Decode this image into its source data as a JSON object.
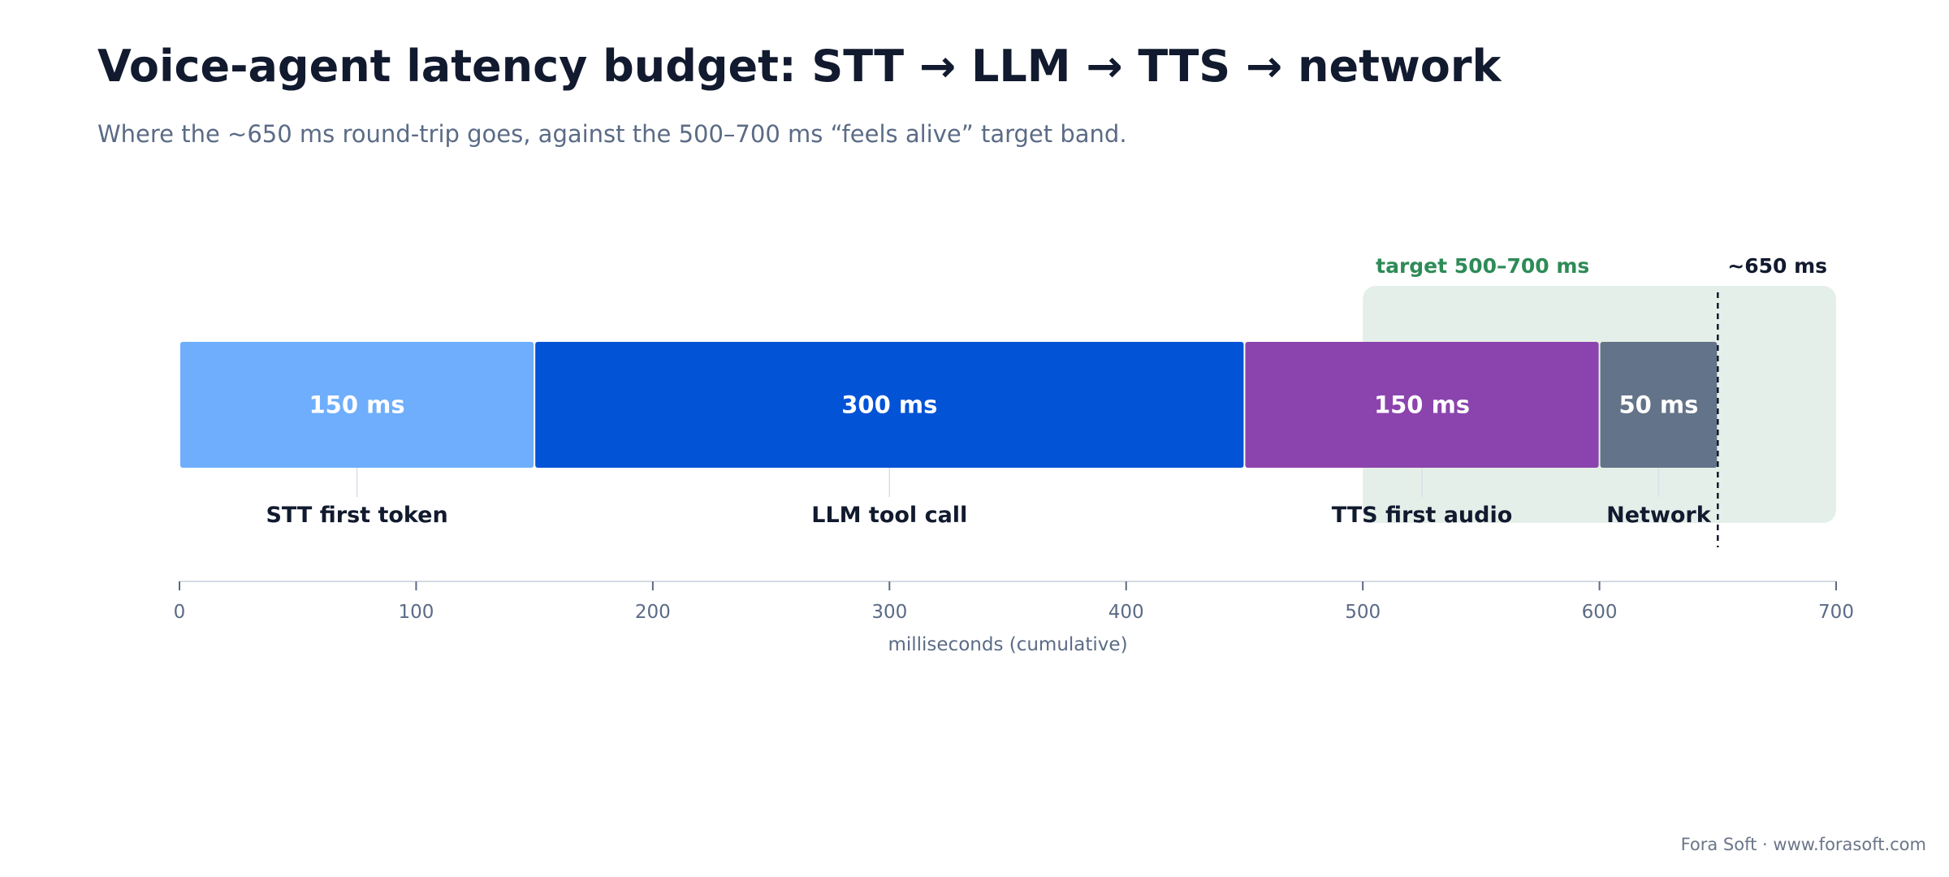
{
  "title": "Voice-agent latency budget: STT → LLM → TTS → network",
  "subtitle": "Where the ~650 ms round-trip goes, against the 500–700 ms “feels alive” target band.",
  "footer": "Fora Soft · www.forasoft.com",
  "chart_data": {
    "type": "bar",
    "orientation": "horizontal-stacked",
    "categories": [
      "STT first token",
      "LLM tool call",
      "TTS first audio",
      "Network"
    ],
    "values": [
      150,
      300,
      150,
      50
    ],
    "value_labels": [
      "150 ms",
      "300 ms",
      "150 ms",
      "50 ms"
    ],
    "colors": [
      "#6eaefc",
      "#0353d6",
      "#8b44ad",
      "#637389"
    ],
    "xlabel": "milliseconds (cumulative)",
    "xlim": [
      0,
      700
    ],
    "xticks": [
      0,
      100,
      200,
      300,
      400,
      500,
      600,
      700
    ],
    "grid": false,
    "target_band": {
      "range": [
        500,
        700
      ],
      "label": "target 500–700 ms",
      "color": "#2e8b57",
      "fill": "#e5efe9"
    },
    "marker": {
      "value": 650,
      "label": "~650 ms"
    }
  }
}
